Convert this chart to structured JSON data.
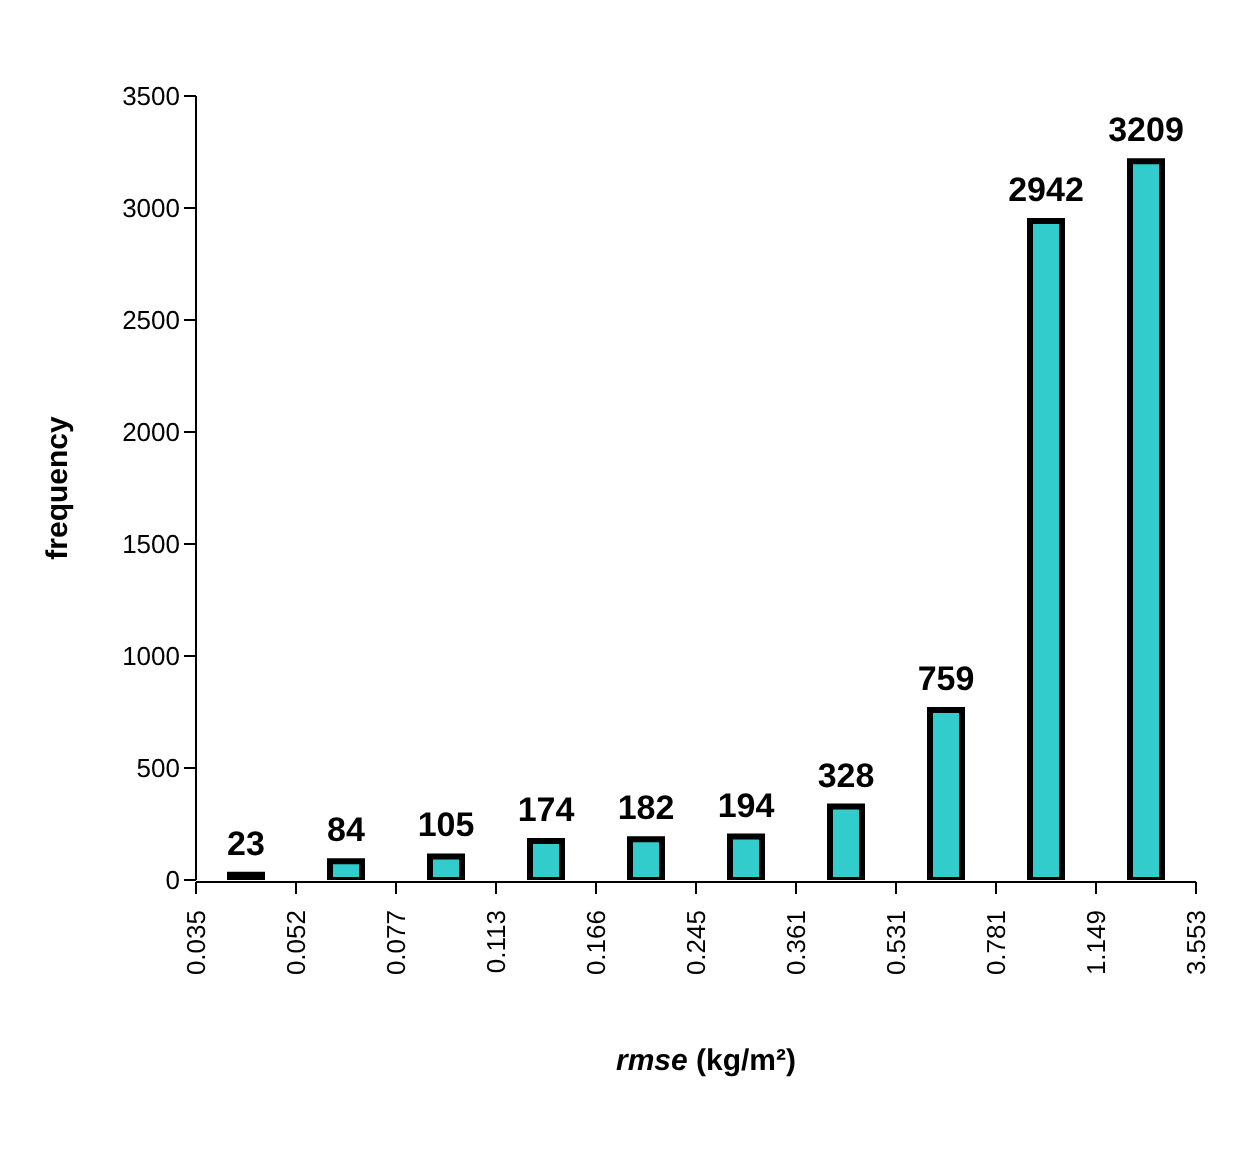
{
  "chart_data": {
    "type": "bar",
    "xlabel": "rmse (kg/m²)",
    "ylabel": "frequency",
    "categories": [
      null,
      null,
      null,
      null,
      null,
      null,
      null,
      null,
      null,
      null
    ],
    "values": [
      23,
      84,
      105,
      174,
      182,
      194,
      328,
      759,
      2942,
      3209
    ],
    "annotations": [
      "0.035",
      "0.052",
      "0.077",
      "0.113",
      "0.166",
      "0.245",
      "0.361",
      "0.531",
      "0.781",
      "1.149",
      "3.553"
    ],
    "color": "#33cccc",
    "ylim": [
      0,
      3500
    ],
    "yticks": [
      0,
      500,
      1000,
      1500,
      2000,
      2500,
      3000,
      3500
    ],
    "grid": false,
    "data_labels": true,
    "legend": false
  }
}
